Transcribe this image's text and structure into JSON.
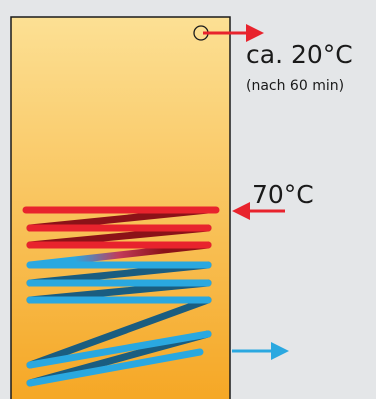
{
  "labels": {
    "outlet_temperature": "ca. 20°C",
    "outlet_note": "(nach 60 min)",
    "inlet_temperature": "70°C"
  },
  "colors": {
    "background": "#e4e6e8",
    "tank_top": "#fce094",
    "tank_bottom": "#f5a623",
    "tank_outline": "#1a1a1a",
    "hot": "#e8232d",
    "hot_dark": "#8b1218",
    "cold": "#2aa8e0",
    "cold_dark": "#1a5d80"
  },
  "icons": {
    "outlet_port": "outlet-port-circle-icon",
    "outlet_arrow": "right-arrow-icon",
    "inlet_arrow": "left-arrow-icon",
    "cold_outlet_arrow": "right-arrow-icon"
  }
}
